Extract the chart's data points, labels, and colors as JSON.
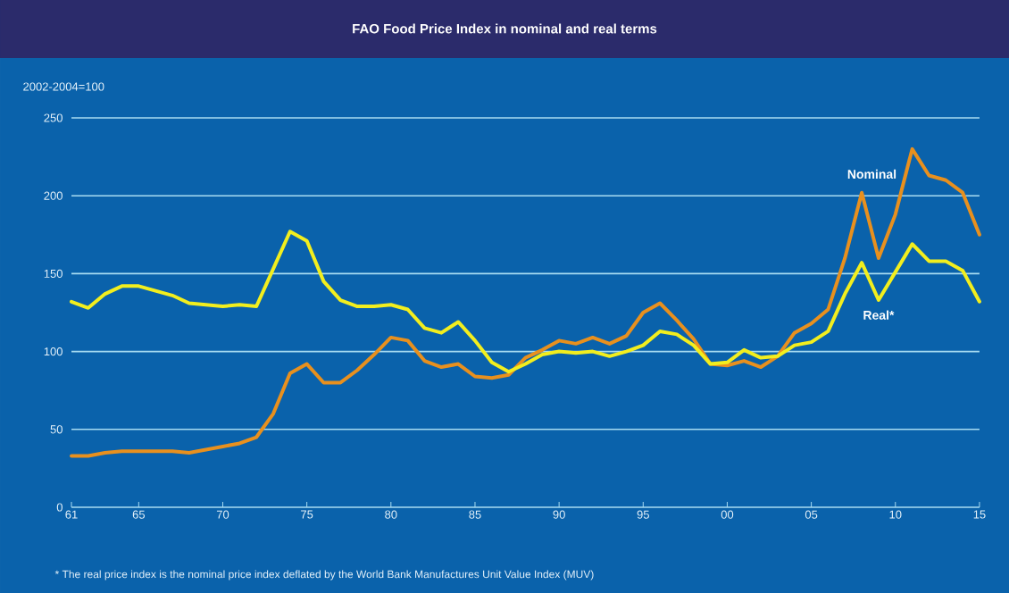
{
  "chart_data": {
    "type": "line",
    "title": "FAO Food Price Index in nominal and real terms",
    "ylabel": "2002-2004=100",
    "x": [
      1961,
      1962,
      1963,
      1964,
      1965,
      1966,
      1967,
      1968,
      1969,
      1970,
      1971,
      1972,
      1973,
      1974,
      1975,
      1976,
      1977,
      1978,
      1979,
      1980,
      1981,
      1982,
      1983,
      1984,
      1985,
      1986,
      1987,
      1988,
      1989,
      1990,
      1991,
      1992,
      1993,
      1994,
      1995,
      1996,
      1997,
      1998,
      1999,
      2000,
      2001,
      2002,
      2003,
      2004,
      2005,
      2006,
      2007,
      2008,
      2009,
      2010,
      2011,
      2012,
      2013,
      2014,
      2015
    ],
    "series": [
      {
        "name": "Nominal",
        "color": "#e8901e",
        "values": [
          33,
          33,
          35,
          36,
          36,
          36,
          36,
          35,
          37,
          39,
          41,
          45,
          60,
          86,
          92,
          80,
          80,
          88,
          98,
          109,
          107,
          94,
          90,
          92,
          84,
          83,
          85,
          96,
          101,
          107,
          105,
          109,
          105,
          110,
          125,
          131,
          120,
          108,
          92,
          91,
          94,
          90,
          97,
          112,
          118,
          127,
          160,
          202,
          160,
          188,
          230,
          213,
          210,
          202,
          175
        ]
      },
      {
        "name": "Real*",
        "color": "#f2ee1e",
        "values": [
          132,
          128,
          137,
          142,
          142,
          139,
          136,
          131,
          130,
          129,
          130,
          129,
          153,
          177,
          171,
          145,
          133,
          129,
          129,
          130,
          127,
          115,
          112,
          119,
          107,
          93,
          87,
          92,
          98,
          100,
          99,
          100,
          97,
          100,
          104,
          113,
          111,
          104,
          92,
          93,
          101,
          96,
          97,
          104,
          106,
          113,
          137,
          157,
          133,
          151,
          169,
          158,
          158,
          152,
          132
        ]
      }
    ],
    "xlim": [
      1961,
      2015
    ],
    "xticks": [
      {
        "value": 1961,
        "label": "61"
      },
      {
        "value": 1965,
        "label": "65"
      },
      {
        "value": 1970,
        "label": "70"
      },
      {
        "value": 1975,
        "label": "75"
      },
      {
        "value": 1980,
        "label": "80"
      },
      {
        "value": 1985,
        "label": "85"
      },
      {
        "value": 1990,
        "label": "90"
      },
      {
        "value": 1995,
        "label": "95"
      },
      {
        "value": 2000,
        "label": "00"
      },
      {
        "value": 2005,
        "label": "05"
      },
      {
        "value": 2010,
        "label": "10"
      },
      {
        "value": 2015,
        "label": "15"
      }
    ],
    "ylim": [
      0,
      250
    ],
    "yticks": [
      0,
      50,
      100,
      150,
      200,
      250
    ],
    "grid": "y",
    "annotations": [
      "* The real price index is the nominal price index deflated by the World Bank Manufactures Unit Value Index (MUV)"
    ]
  }
}
